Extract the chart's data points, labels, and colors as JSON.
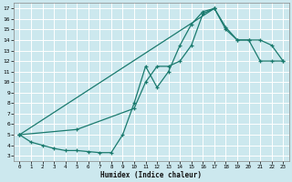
{
  "xlabel": "Humidex (Indice chaleur)",
  "bg_color": "#cce8ee",
  "grid_color": "#ffffff",
  "line_color": "#1a7a6e",
  "xlim": [
    -0.5,
    23.5
  ],
  "ylim": [
    2.5,
    17.5
  ],
  "xticks": [
    0,
    1,
    2,
    3,
    4,
    5,
    6,
    7,
    8,
    9,
    10,
    11,
    12,
    13,
    14,
    15,
    16,
    17,
    18,
    19,
    20,
    21,
    22,
    23
  ],
  "yticks": [
    3,
    4,
    5,
    6,
    7,
    8,
    9,
    10,
    11,
    12,
    13,
    14,
    15,
    16,
    17
  ],
  "line1_x": [
    0,
    1,
    2,
    3,
    4,
    5,
    6,
    7,
    8,
    9,
    10,
    11,
    12,
    13,
    14,
    15,
    16,
    17
  ],
  "line1_y": [
    5,
    4.3,
    4.0,
    3.7,
    3.5,
    3.5,
    3.4,
    3.3,
    3.3,
    5.0,
    8.0,
    11.5,
    9.5,
    11.0,
    13.5,
    15.5,
    16.7,
    17.0
  ],
  "line2_x": [
    0,
    17,
    18,
    19,
    20,
    21,
    22,
    23
  ],
  "line2_y": [
    5,
    17.0,
    15.2,
    14.0,
    14.0,
    14.0,
    13.5,
    12.0
  ],
  "line3_x": [
    0,
    5,
    10,
    11,
    12,
    13,
    14,
    15,
    16,
    17,
    18,
    19,
    20,
    21,
    22,
    23
  ],
  "line3_y": [
    5,
    5.5,
    7.5,
    10.0,
    11.5,
    11.5,
    12.0,
    13.5,
    16.5,
    17.0,
    15.0,
    14.0,
    14.0,
    12.0,
    12.0,
    12.0
  ]
}
